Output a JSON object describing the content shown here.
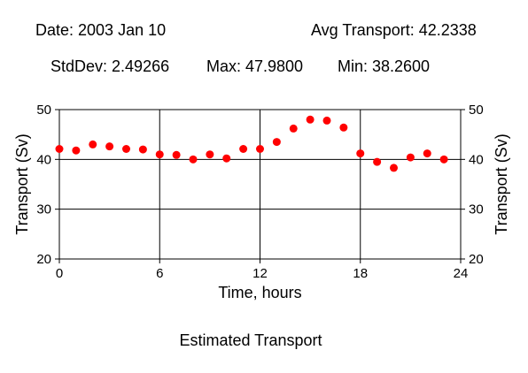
{
  "header": {
    "date": "Date: 2003 Jan 10",
    "avg": "Avg Transport: 42.2338",
    "stddev": "StdDev: 2.49266",
    "max": "Max: 47.9800",
    "min": "Min: 38.2600"
  },
  "caption": "Estimated Transport",
  "chart_data": {
    "type": "scatter",
    "title": "",
    "xlabel": "Time, hours",
    "ylabel": "Transport (Sv)",
    "ylabel_right": "Transport (Sv)",
    "xlim": [
      0,
      24
    ],
    "ylim": [
      20,
      50
    ],
    "xticks": [
      0,
      6,
      12,
      18,
      24
    ],
    "yticks": [
      20,
      30,
      40,
      50
    ],
    "grid": true,
    "marker_color": "#ff0000",
    "series": [
      {
        "x": [
          0,
          1,
          2,
          3,
          4,
          5,
          6,
          7,
          8,
          9,
          10,
          11,
          12,
          13,
          14,
          15,
          16,
          17,
          18,
          19,
          20,
          21,
          22,
          23
        ],
        "y": [
          42.1,
          41.8,
          43.0,
          42.6,
          42.1,
          42.0,
          41.0,
          40.9,
          40.0,
          41.0,
          40.2,
          42.1,
          42.1,
          43.5,
          46.2,
          48.0,
          47.8,
          46.4,
          41.2,
          39.5,
          38.3,
          40.4,
          41.2,
          40.0
        ]
      }
    ]
  }
}
